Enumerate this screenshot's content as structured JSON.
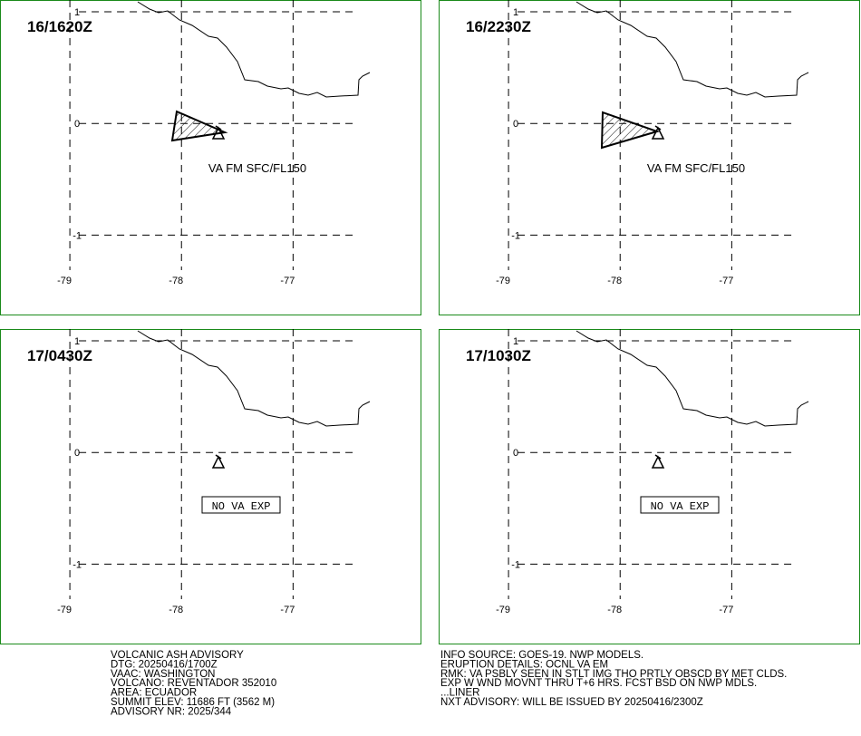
{
  "panels": [
    {
      "time": "16/1620Z",
      "annotation": "VA FM SFC/FL150",
      "ash": true,
      "boxed": false
    },
    {
      "time": "16/2230Z",
      "annotation": "VA FM SFC/FL150",
      "ash": true,
      "boxed": false
    },
    {
      "time": "17/0430Z",
      "annotation": "NO VA EXP",
      "ash": false,
      "boxed": true
    },
    {
      "time": "17/1030Z",
      "annotation": "NO VA EXP",
      "ash": false,
      "boxed": true
    }
  ],
  "xlim": [
    -79.626,
    -75.85
  ],
  "ylim": [
    1.106,
    -1.72
  ],
  "xticks": [
    -79,
    -78,
    -77
  ],
  "yticks": [
    1,
    0,
    -1
  ],
  "advisory_left": [
    "VOLCANIC ASH ADVISORY",
    "DTG: 20250416/1700Z",
    "VAAC: WASHINGTON",
    "VOLCANO: REVENTADOR 352010",
    "AREA: ECUADOR",
    "SUMMIT ELEV: 11686 FT (3562 M)",
    "ADVISORY NR: 2025/344"
  ],
  "advisory_right": [
    "INFO SOURCE: GOES-19. NWP MODELS.",
    "ERUPTION DETAILS: OCNL VA EM",
    "RMK: VA PSBLY SEEN IN STLT IMG THO PRTLY OBSCD BY MET CLDS.",
    "EXP W WND MOVNT THRU T+6 HRS. FCST BSD ON NWP MDLS.",
    "...LINER",
    "NXT ADVISORY: WILL BE ISSUED BY 20250416/2300Z"
  ]
}
